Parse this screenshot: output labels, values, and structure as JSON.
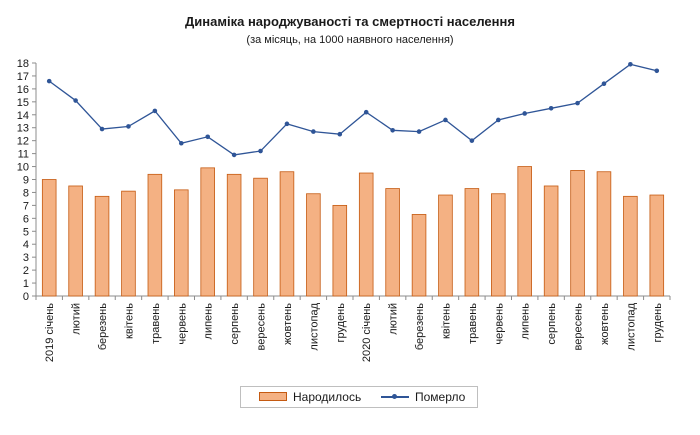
{
  "chart_data": {
    "type": "bar+line",
    "title": "Динаміка народжуваності та смертності населення",
    "subtitle": "(за місяць, на 1000 наявного населення)",
    "ylim": [
      0,
      18
    ],
    "yticks": [
      0,
      1,
      2,
      3,
      4,
      5,
      6,
      7,
      8,
      9,
      10,
      11,
      12,
      13,
      14,
      15,
      16,
      17,
      18
    ],
    "grid": false,
    "legend_position": "bottom",
    "categories": [
      "2019  січень",
      "лютий",
      "березень",
      "квітень",
      "травень",
      "червень",
      "липень",
      "серпень",
      "вересень",
      "жовтень",
      "листопад",
      "грудень",
      "2020 січень",
      "лютий",
      "березень",
      "квітень",
      "травень",
      "червень",
      "липень",
      "серпень",
      "вересень",
      "жовтень",
      "листопад",
      "грудень"
    ],
    "series": [
      {
        "name": "Народилось",
        "kind": "bar",
        "color": "#f4b183",
        "edge_color": "#c55a11",
        "values": [
          9.0,
          8.5,
          7.7,
          8.1,
          9.4,
          8.2,
          9.9,
          9.4,
          9.1,
          9.6,
          7.9,
          7.0,
          9.5,
          8.3,
          6.3,
          7.8,
          8.3,
          7.9,
          10.0,
          8.5,
          9.7,
          9.6,
          7.7,
          7.8
        ]
      },
      {
        "name": "Померло",
        "kind": "line",
        "color": "#2f5597",
        "values": [
          16.6,
          15.1,
          12.9,
          13.1,
          14.3,
          11.8,
          12.3,
          10.9,
          11.2,
          13.3,
          12.7,
          12.5,
          14.2,
          12.8,
          12.7,
          13.6,
          12.0,
          13.6,
          14.1,
          14.5,
          14.9,
          16.4,
          17.9,
          17.4
        ]
      }
    ]
  }
}
